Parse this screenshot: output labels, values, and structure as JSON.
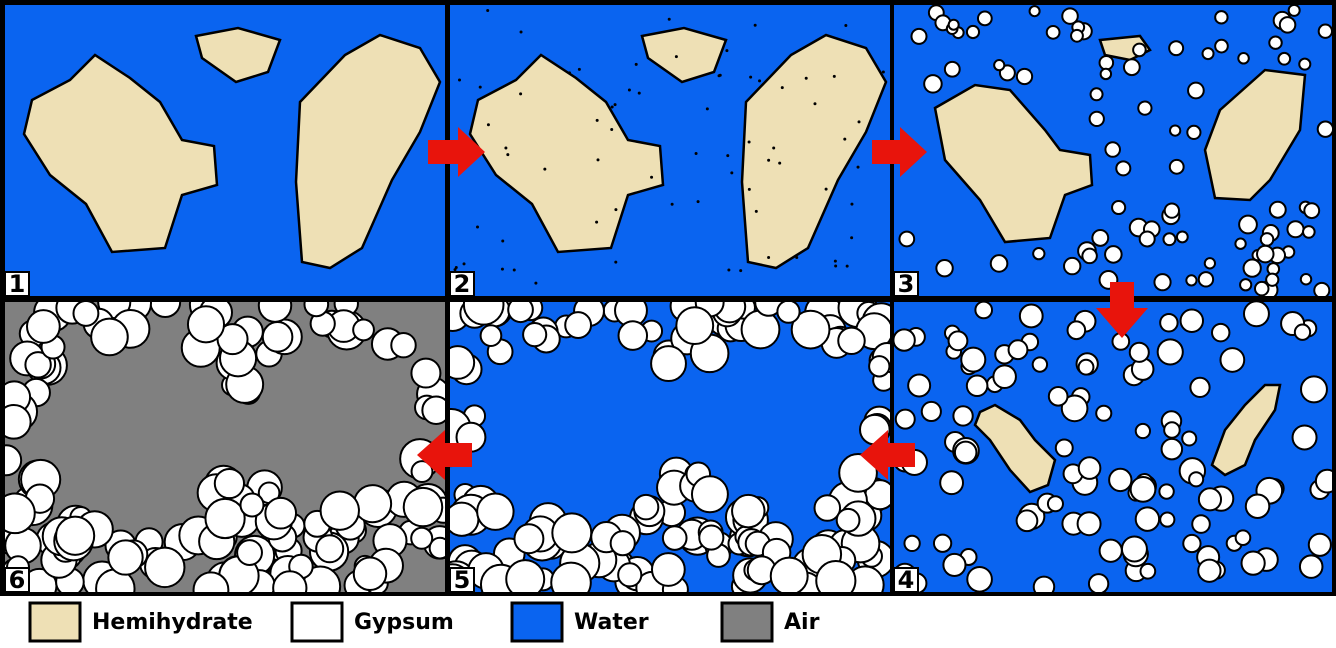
{
  "panels": [
    {
      "label": "1"
    },
    {
      "label": "2"
    },
    {
      "label": "3"
    },
    {
      "label": "4"
    },
    {
      "label": "5"
    },
    {
      "label": "6"
    }
  ],
  "legend": [
    {
      "label": "Hemihydrate",
      "color": "#eee0b5"
    },
    {
      "label": "Gypsum",
      "color": "#ffffff"
    },
    {
      "label": "Water",
      "color": "#0a64f0"
    },
    {
      "label": "Air",
      "color": "#808080"
    }
  ]
}
